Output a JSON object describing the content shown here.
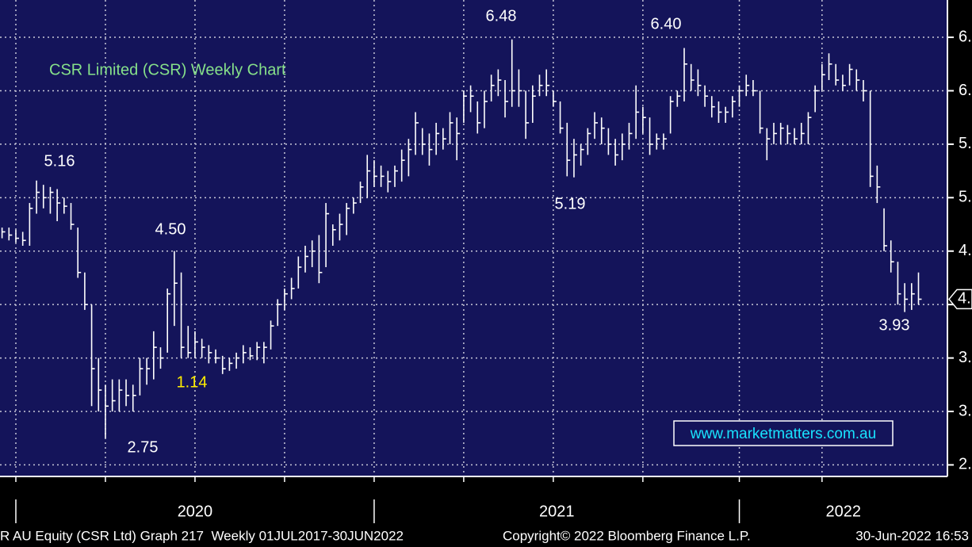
{
  "chart_data": {
    "type": "hlc",
    "title": "CSR Limited (CSR) Weekly Chart",
    "x": [
      -2,
      -1,
      0,
      1,
      2,
      3,
      4,
      5,
      6,
      7,
      8,
      9,
      10,
      11,
      12,
      13,
      14,
      15,
      16,
      17,
      18,
      19,
      20,
      21,
      22,
      23,
      24,
      25,
      26,
      27,
      28,
      29,
      30,
      31,
      32,
      33,
      34,
      35,
      36,
      37,
      38,
      39,
      40,
      41,
      42,
      43,
      44,
      45,
      46,
      47,
      48,
      49,
      50,
      51,
      52,
      53,
      54,
      55,
      56,
      57,
      58,
      59,
      60,
      61,
      62,
      63,
      64,
      65,
      66,
      67,
      68,
      69,
      70,
      71,
      72,
      73,
      74,
      75,
      76,
      77,
      78,
      79,
      80,
      81,
      82,
      83,
      84,
      85,
      86,
      87,
      88,
      89,
      90,
      91,
      92,
      93,
      94,
      95,
      96,
      97,
      98,
      99,
      100,
      101,
      102,
      103,
      104,
      105,
      106,
      107,
      108,
      109,
      110,
      111,
      112,
      113,
      114,
      115,
      116,
      117,
      118,
      119,
      120,
      121,
      122,
      123,
      124,
      125,
      126,
      127,
      128,
      129,
      130,
      131
    ],
    "high": [
      4.72,
      4.72,
      4.7,
      4.68,
      4.95,
      5.16,
      5.12,
      5.1,
      5.08,
      5.0,
      4.95,
      4.72,
      4.3,
      4.0,
      3.5,
      3.25,
      3.3,
      3.3,
      3.3,
      3.25,
      3.5,
      3.5,
      3.75,
      3.6,
      4.15,
      4.5,
      4.3,
      3.8,
      3.75,
      3.68,
      3.62,
      3.58,
      3.52,
      3.5,
      3.55,
      3.62,
      3.6,
      3.65,
      3.65,
      3.85,
      4.05,
      4.15,
      4.25,
      4.45,
      4.55,
      4.6,
      4.65,
      4.95,
      4.75,
      4.85,
      4.95,
      5.0,
      5.15,
      5.4,
      5.35,
      5.3,
      5.25,
      5.3,
      5.45,
      5.55,
      5.8,
      5.65,
      5.6,
      5.7,
      5.65,
      5.8,
      5.75,
      6.0,
      6.05,
      5.9,
      6.0,
      6.15,
      6.2,
      6.1,
      6.48,
      6.2,
      6.0,
      6.05,
      6.15,
      6.2,
      6.0,
      5.9,
      5.7,
      5.55,
      5.5,
      5.65,
      5.8,
      5.75,
      5.65,
      5.55,
      5.6,
      5.7,
      6.05,
      5.85,
      5.75,
      5.6,
      5.6,
      5.95,
      6.0,
      6.4,
      6.25,
      6.2,
      6.05,
      5.95,
      5.9,
      5.85,
      5.95,
      6.05,
      6.15,
      6.1,
      6.0,
      5.65,
      5.7,
      5.7,
      5.68,
      5.65,
      5.7,
      5.8,
      6.05,
      6.25,
      6.35,
      6.25,
      6.15,
      6.25,
      6.2,
      6.1,
      6.0,
      5.3,
      4.9,
      4.6,
      4.4,
      4.2,
      4.2,
      4.3
    ],
    "low": [
      4.62,
      4.6,
      4.58,
      4.55,
      4.55,
      4.85,
      4.9,
      4.85,
      4.78,
      4.85,
      4.7,
      4.25,
      3.95,
      3.05,
      3.0,
      2.75,
      3.0,
      3.0,
      3.05,
      3.0,
      3.15,
      3.25,
      3.3,
      3.4,
      3.55,
      3.8,
      3.5,
      3.5,
      3.5,
      3.5,
      3.45,
      3.45,
      3.35,
      3.38,
      3.4,
      3.45,
      3.48,
      3.48,
      3.45,
      3.58,
      3.8,
      3.95,
      4.05,
      4.15,
      4.3,
      4.35,
      4.2,
      4.35,
      4.55,
      4.6,
      4.65,
      4.85,
      4.95,
      5.0,
      5.1,
      5.1,
      5.05,
      5.1,
      5.15,
      5.2,
      5.4,
      5.4,
      5.3,
      5.4,
      5.45,
      5.5,
      5.35,
      5.7,
      5.8,
      5.6,
      5.65,
      5.9,
      5.95,
      5.75,
      5.85,
      5.85,
      5.55,
      5.7,
      5.95,
      5.95,
      5.85,
      5.6,
      5.2,
      5.19,
      5.3,
      5.4,
      5.55,
      5.5,
      5.4,
      5.3,
      5.35,
      5.45,
      5.55,
      5.6,
      5.4,
      5.45,
      5.45,
      5.6,
      5.85,
      5.9,
      6.0,
      5.95,
      5.85,
      5.75,
      5.7,
      5.7,
      5.75,
      5.85,
      5.95,
      5.95,
      5.6,
      5.35,
      5.5,
      5.5,
      5.5,
      5.5,
      5.5,
      5.5,
      5.8,
      6.0,
      6.1,
      6.05,
      6.0,
      6.05,
      6.0,
      5.9,
      5.1,
      4.95,
      4.5,
      4.3,
      4.0,
      3.93,
      3.95,
      4.0
    ],
    "close": [
      4.68,
      4.65,
      4.62,
      4.6,
      4.9,
      5.05,
      5.0,
      5.05,
      4.95,
      4.92,
      4.75,
      4.3,
      4.0,
      3.4,
      3.2,
      3.05,
      3.1,
      3.2,
      3.15,
      3.15,
      3.4,
      3.4,
      3.6,
      3.5,
      4.1,
      4.2,
      3.6,
      3.55,
      3.65,
      3.6,
      3.55,
      3.5,
      3.4,
      3.45,
      3.5,
      3.55,
      3.52,
      3.6,
      3.6,
      3.8,
      4.0,
      4.1,
      4.15,
      4.35,
      4.45,
      4.5,
      4.3,
      4.85,
      4.7,
      4.75,
      4.9,
      4.95,
      5.1,
      5.25,
      5.2,
      5.2,
      5.15,
      5.25,
      5.35,
      5.45,
      5.7,
      5.5,
      5.45,
      5.6,
      5.55,
      5.7,
      5.6,
      5.95,
      5.95,
      5.7,
      5.9,
      6.05,
      6.1,
      5.9,
      6.0,
      6.0,
      5.7,
      5.95,
      6.05,
      6.05,
      5.9,
      5.65,
      5.35,
      5.4,
      5.45,
      5.6,
      5.7,
      5.65,
      5.5,
      5.4,
      5.5,
      5.6,
      5.8,
      5.75,
      5.5,
      5.55,
      5.55,
      5.9,
      5.95,
      6.25,
      6.1,
      6.05,
      5.95,
      5.85,
      5.8,
      5.8,
      5.9,
      6.0,
      6.05,
      6.0,
      5.65,
      5.55,
      5.6,
      5.65,
      5.6,
      5.55,
      5.6,
      5.75,
      6.0,
      6.15,
      6.25,
      6.1,
      6.05,
      6.2,
      6.1,
      6.0,
      5.2,
      5.1,
      4.55,
      4.4,
      4.1,
      4.05,
      4.1,
      4.05
    ],
    "color": "#ffffff",
    "xlim": [
      -2.3,
      135.2
    ],
    "xticks": [
      {
        "value": 0,
        "label": "2020"
      },
      {
        "value": 52,
        "label": "2021"
      },
      {
        "value": 105,
        "label": "2022"
      }
    ],
    "xgrid": [
      0,
      13,
      26,
      39,
      52,
      65,
      78,
      91,
      105,
      117
    ],
    "ylim": [
      2.392,
      6.849
    ],
    "yticks": [
      {
        "value": 2.5,
        "label": "2."
      },
      {
        "value": 3,
        "label": "3."
      },
      {
        "value": 3.5,
        "label": "3."
      },
      {
        "value": 4,
        "label": "4."
      },
      {
        "value": 4.5,
        "label": "4."
      },
      {
        "value": 5,
        "label": "5."
      },
      {
        "value": 5.5,
        "label": "5."
      },
      {
        "value": 6,
        "label": "6."
      },
      {
        "value": 6.5,
        "label": "6."
      }
    ],
    "grid": true,
    "last_price": {
      "value": 4.05,
      "label": "4."
    },
    "annotations": [
      {
        "text": "5.16",
        "color": "#ffffff"
      },
      {
        "text": "4.50",
        "color": "#ffffff"
      },
      {
        "text": "2.75",
        "color": "#ffffff"
      },
      {
        "text": "1.14",
        "color": "#ffee00"
      },
      {
        "text": "6.48",
        "color": "#ffffff"
      },
      {
        "text": "5.19",
        "color": "#ffffff"
      },
      {
        "text": "6.40",
        "color": "#ffffff"
      },
      {
        "text": "3.93",
        "color": "#ffffff"
      }
    ],
    "watermark": "www.marketmatters.com.au",
    "footer": {
      "left": "R AU Equity (CSR Ltd) Graph 217  Weekly 01JUL2017-30JUN2022",
      "center": "Copyright© 2022 Bloomberg Finance L.P.",
      "right": "30-Jun-2022 16:53"
    }
  }
}
